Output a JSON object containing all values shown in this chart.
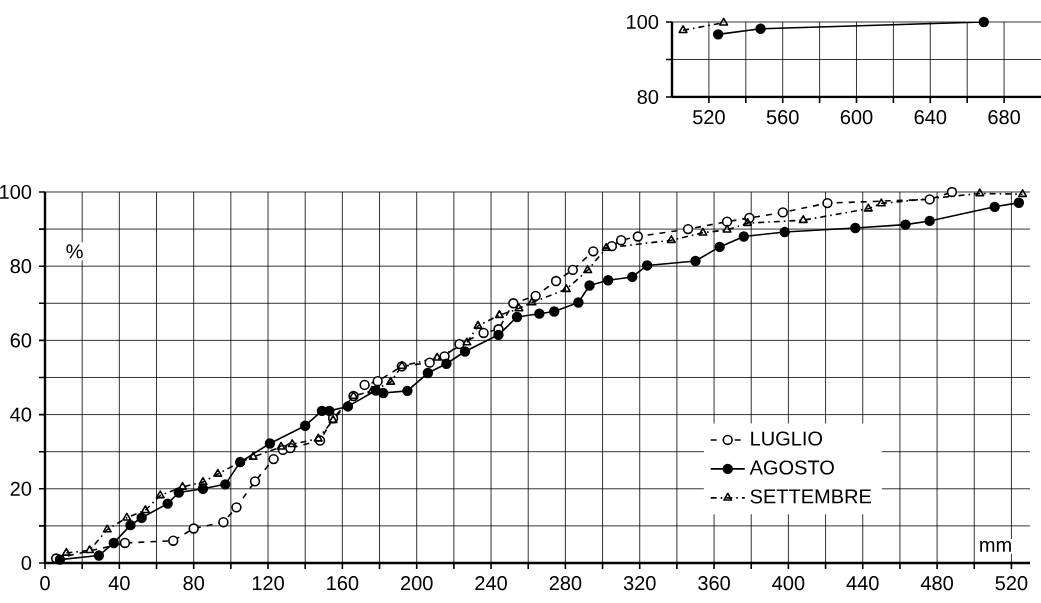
{
  "chart_data": [
    {
      "type": "line",
      "xlabel": "mm",
      "ylabel": "%",
      "xlim": [
        0,
        530
      ],
      "ylim": [
        0,
        100
      ],
      "xticks": [
        0,
        {
          "value": 20,
          "label": null
        },
        40,
        {
          "value": 60,
          "label": null
        },
        80,
        {
          "value": 100,
          "label": null
        },
        120,
        {
          "value": 140,
          "label": null
        },
        160,
        {
          "value": 180,
          "label": null
        },
        200,
        {
          "value": 220,
          "label": null
        },
        240,
        {
          "value": 260,
          "label": null
        },
        280,
        {
          "value": 300,
          "label": null
        },
        320,
        {
          "value": 340,
          "label": null
        },
        360,
        {
          "value": 380,
          "label": null
        },
        400,
        {
          "value": 420,
          "label": null
        },
        440,
        {
          "value": 460,
          "label": null
        },
        480,
        {
          "value": 500,
          "label": null
        },
        520
      ],
      "yticks": [
        0,
        {
          "value": 10,
          "label": null
        },
        20,
        {
          "value": 30,
          "label": null
        },
        40,
        {
          "value": 50,
          "label": null
        },
        60,
        {
          "value": 70,
          "label": null
        },
        80,
        {
          "value": 90,
          "label": null
        },
        100
      ],
      "grid": true,
      "legend": "bottom right",
      "series": [
        {
          "name": "LUGLIO",
          "color": "#000000",
          "marker": "circle",
          "line_style": "dashed",
          "x": [
            6,
            43,
            69,
            80,
            96,
            103,
            113,
            123,
            128,
            132,
            148,
            155,
            166,
            172,
            179,
            192,
            207,
            215,
            223,
            236,
            244,
            252,
            264,
            275,
            284,
            295,
            305,
            310,
            319,
            346,
            367,
            379,
            397,
            421,
            476,
            488
          ],
          "values": [
            1.2,
            5.4,
            6,
            9.3,
            11,
            15,
            22,
            28,
            30.5,
            31,
            33,
            39,
            45,
            48,
            49,
            53,
            54,
            55.7,
            59,
            62,
            63,
            70,
            72,
            76,
            79,
            84,
            85.4,
            87,
            88,
            90,
            92,
            93,
            94.5,
            97,
            98,
            100
          ]
        },
        {
          "name": "AGOSTO",
          "color": "#000000",
          "marker": "filled circle",
          "line_style": "solid",
          "x": [
            8,
            29,
            37,
            46,
            52,
            66,
            72,
            85,
            97,
            105,
            121,
            140,
            149,
            153,
            163,
            178,
            182,
            195,
            206,
            216,
            226,
            244,
            254,
            266,
            274,
            287,
            293,
            303,
            316,
            324,
            350,
            363,
            376,
            398,
            436,
            463,
            476,
            511,
            524
          ],
          "values": [
            0.9,
            2,
            5.4,
            10.2,
            12.2,
            16,
            19,
            20,
            21.2,
            27.2,
            32.2,
            37,
            41,
            41,
            42.2,
            46.5,
            45.8,
            46.4,
            51.2,
            53.7,
            57,
            61.5,
            66.3,
            67.2,
            67.8,
            70.2,
            74.8,
            76.2,
            77.1,
            80.2,
            81.4,
            85.2,
            88,
            89.2,
            90.3,
            91.2,
            92.2,
            96,
            97.1
          ]
        },
        {
          "name": "SETTEMBRE",
          "color": "#000000",
          "marker": "triangle",
          "line_style": "dashdot",
          "x": [
            11.5,
            24,
            33.5,
            44,
            54,
            62,
            74,
            85,
            93,
            105,
            112,
            127,
            133,
            147,
            155,
            166,
            176,
            186,
            192,
            211,
            227,
            233,
            244.5,
            255,
            262,
            280.5,
            292,
            302,
            337,
            354,
            367,
            378,
            408,
            443,
            450,
            503,
            526
          ],
          "values": [
            2.7,
            3.4,
            9,
            12.2,
            14.2,
            18.2,
            20.5,
            21.8,
            24,
            27.2,
            28.6,
            31.3,
            32,
            33.5,
            38.5,
            45,
            46.4,
            48.8,
            53.1,
            55.3,
            59.4,
            63.9,
            66.8,
            68.6,
            70.2,
            73.8,
            78.9,
            84.9,
            87,
            89,
            89.8,
            91.6,
            92.4,
            95.5,
            96.9,
            99.6,
            99.4
          ]
        }
      ]
    },
    {
      "type": "line",
      "xlim": [
        500,
        700
      ],
      "ylim": [
        80,
        100
      ],
      "xticks": [
        {
          "value": 520,
          "label": "520"
        },
        {
          "value": 540,
          "label": null
        },
        560,
        {
          "value": 580,
          "label": null
        },
        600,
        {
          "value": 620,
          "label": null
        },
        640,
        {
          "value": 660,
          "label": null
        },
        680
      ],
      "yticks": [
        80,
        {
          "value": 90,
          "label": null
        },
        100
      ],
      "grid": true,
      "series": [
        {
          "color": "#000000",
          "marker": "filled circle",
          "line_style": "solid",
          "x": [
            525,
            548,
            669
          ],
          "values": [
            96.7,
            98.2,
            100
          ]
        },
        {
          "color": "#000000",
          "marker": "triangle",
          "line_style": "dashdot",
          "x": [
            506,
            528
          ],
          "values": [
            97.8,
            99.8
          ]
        }
      ]
    }
  ]
}
